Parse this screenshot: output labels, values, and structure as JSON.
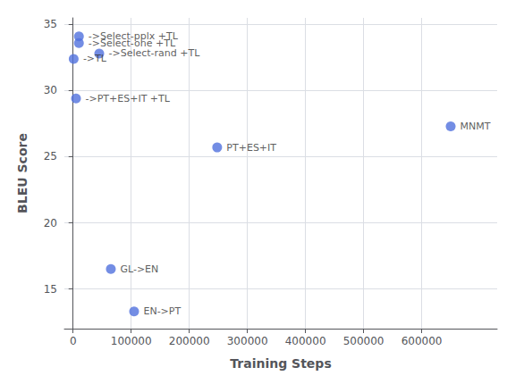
{
  "chart_data": {
    "type": "scatter",
    "x": [
      10000,
      10000,
      45000,
      1000,
      5000,
      65000,
      105000,
      248000,
      650000
    ],
    "values": [
      34.1,
      33.6,
      32.8,
      32.4,
      29.4,
      16.5,
      13.3,
      25.7,
      27.3
    ],
    "annotations": [
      "->Select-pplx +TL",
      "->Select-one +TL",
      "->Select-rand +TL",
      "->TL",
      "->PT+ES+IT +TL",
      "GL->EN",
      "EN->PT",
      "PT+ES+IT",
      "MNMT"
    ],
    "xlabel": "Training Steps",
    "ylabel": "BLEU Score",
    "xlim": [
      -15000,
      730000
    ],
    "ylim": [
      12,
      35.5
    ],
    "xticks": [
      0,
      100000,
      200000,
      300000,
      400000,
      500000,
      600000
    ],
    "yticks": [
      15,
      20,
      25,
      30,
      35
    ],
    "grid": true
  }
}
